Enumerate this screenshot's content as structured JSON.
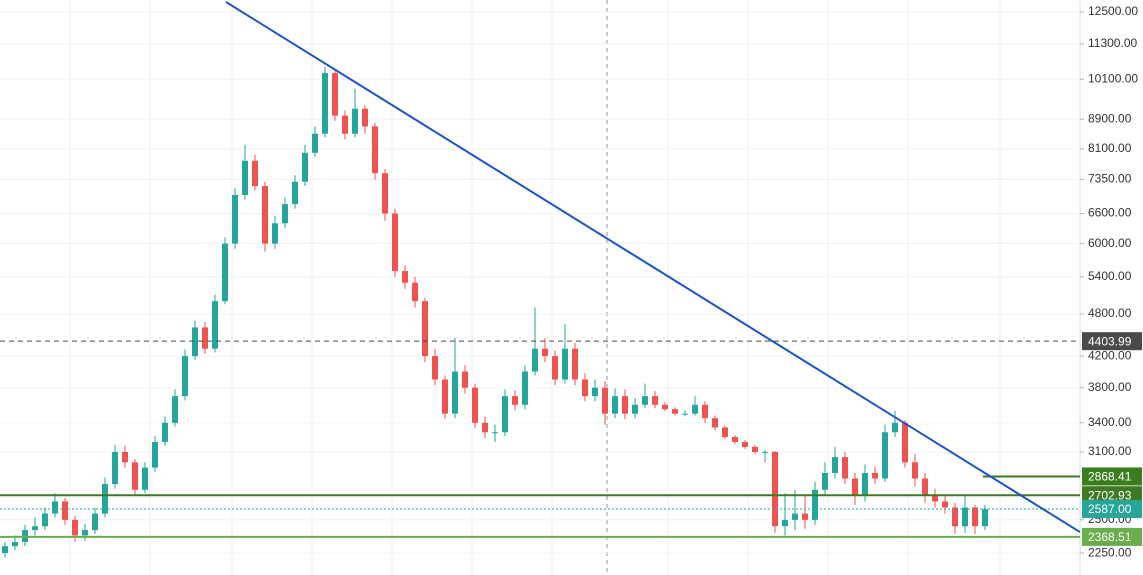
{
  "chart_data": {
    "type": "candlestick",
    "log_scale": true,
    "grid": true,
    "up_color": "#26a69a",
    "down_color": "#ef5350",
    "ylim": [
      2099,
      12985
    ],
    "yticks": [
      {
        "value": 2250,
        "label": "2250.00"
      },
      {
        "value": 2500,
        "label": "2500.00"
      },
      {
        "value": 3100,
        "label": "3100.00"
      },
      {
        "value": 3400,
        "label": "3400.00"
      },
      {
        "value": 3800,
        "label": "3800.00"
      },
      {
        "value": 4200,
        "label": "4200.00"
      },
      {
        "value": 4800,
        "label": "4800.00"
      },
      {
        "value": 5400,
        "label": "5400.00"
      },
      {
        "value": 6000,
        "label": "6000.00"
      },
      {
        "value": 6600,
        "label": "6600.00"
      },
      {
        "value": 7350,
        "label": "7350.00"
      },
      {
        "value": 8100,
        "label": "8100.00"
      },
      {
        "value": 8900,
        "label": "8900.00"
      },
      {
        "value": 10100,
        "label": "10100.00"
      },
      {
        "value": 11300,
        "label": "11300.00"
      },
      {
        "value": 12500,
        "label": "12500.00"
      }
    ],
    "open": [
      2250,
      2300,
      2330,
      2420,
      2450,
      2550,
      2650,
      2500,
      2380,
      2420,
      2550,
      2800,
      3100,
      3000,
      2750,
      2950,
      3200,
      3400,
      3700,
      4200,
      4600,
      4300,
      5000,
      6000,
      7000,
      7800,
      7200,
      6000,
      6400,
      6800,
      7300,
      8000,
      8500,
      10300,
      9000,
      8500,
      9200,
      8700,
      7500,
      6600,
      5500,
      5300,
      5000,
      4200,
      3900,
      3500,
      4000,
      3800,
      3400,
      3300,
      3300,
      3700,
      3600,
      4000,
      4300,
      4200,
      3900,
      4300,
      3900,
      3700,
      3800,
      3500,
      3700,
      3500,
      3600,
      3700,
      3600,
      3550,
      3500,
      3500,
      3600,
      3450,
      3350,
      3250,
      3200,
      3150,
      3100,
      3100,
      2450,
      2500,
      2550,
      2500,
      2750,
      2900,
      3050,
      2850,
      2700,
      2900,
      2850,
      3300,
      3400,
      3000,
      2850,
      2700,
      2650,
      2600,
      2450,
      2600,
      2450
    ],
    "high": [
      2330,
      2380,
      2460,
      2520,
      2600,
      2720,
      2680,
      2530,
      2470,
      2600,
      2860,
      3170,
      3160,
      3030,
      3000,
      3260,
      3470,
      3780,
      4290,
      4700,
      4680,
      5100,
      6120,
      7150,
      8200,
      7950,
      7300,
      6550,
      6950,
      7450,
      8200,
      8700,
      10500,
      10400,
      9150,
      9800,
      9300,
      8800,
      7600,
      6700,
      5600,
      5400,
      5050,
      4300,
      3950,
      4450,
      4080,
      3850,
      3470,
      3380,
      3780,
      3770,
      4080,
      4900,
      4450,
      4280,
      4650,
      4380,
      3980,
      3900,
      3880,
      3790,
      3780,
      3680,
      3850,
      3760,
      3630,
      3570,
      3540,
      3700,
      3640,
      3480,
      3370,
      3270,
      3220,
      3170,
      3120,
      3110,
      2720,
      2750,
      2700,
      2820,
      3000,
      3150,
      3100,
      2900,
      2980,
      2960,
      3380,
      3530,
      3430,
      3080,
      2900,
      2760,
      2700,
      2640,
      2700,
      2620,
      2620
    ],
    "low": [
      2220,
      2270,
      2300,
      2380,
      2420,
      2520,
      2460,
      2330,
      2340,
      2390,
      2520,
      2760,
      2950,
      2700,
      2720,
      2910,
      3160,
      3360,
      3650,
      4150,
      4230,
      4250,
      4950,
      5900,
      6900,
      7100,
      5850,
      5900,
      6300,
      6700,
      7200,
      7900,
      8400,
      8850,
      8350,
      8400,
      8500,
      7350,
      6450,
      5400,
      5200,
      4900,
      4120,
      3830,
      3440,
      3450,
      3730,
      3340,
      3240,
      3200,
      3260,
      3540,
      3550,
      3950,
      4120,
      3830,
      3850,
      3830,
      3640,
      3640,
      3380,
      3450,
      3440,
      3450,
      3560,
      3560,
      3530,
      3480,
      3470,
      3480,
      3400,
      3320,
      3230,
      3180,
      3130,
      3080,
      3000,
      2400,
      2380,
      2420,
      2430,
      2460,
      2700,
      2850,
      2800,
      2620,
      2650,
      2800,
      2820,
      3250,
      2950,
      2780,
      2640,
      2600,
      2550,
      2390,
      2400,
      2390,
      2420
    ],
    "close": [
      2300,
      2330,
      2420,
      2450,
      2550,
      2650,
      2500,
      2380,
      2420,
      2550,
      2800,
      3100,
      3000,
      2750,
      2950,
      3200,
      3400,
      3700,
      4200,
      4600,
      4300,
      5000,
      6000,
      7000,
      7800,
      7200,
      6000,
      6400,
      6800,
      7300,
      8000,
      8500,
      10300,
      9000,
      8500,
      9200,
      8700,
      7500,
      6600,
      5500,
      5300,
      5000,
      4200,
      3900,
      3500,
      4000,
      3800,
      3400,
      3300,
      3300,
      3700,
      3600,
      4000,
      4300,
      4200,
      3900,
      4300,
      3900,
      3700,
      3800,
      3500,
      3700,
      3500,
      3600,
      3700,
      3600,
      3550,
      3500,
      3500,
      3600,
      3450,
      3350,
      3250,
      3200,
      3150,
      3100,
      3100,
      2450,
      2500,
      2550,
      2500,
      2750,
      2900,
      3050,
      2850,
      2700,
      2900,
      2850,
      3300,
      3400,
      3000,
      2850,
      2700,
      2650,
      2600,
      2450,
      2600,
      2450,
      2587
    ],
    "trend_line": {
      "color": "#1e53c8",
      "values": [
        12903,
        2405
      ]
    },
    "levels": [
      {
        "value": 4403.99,
        "color": "#4a4a4a",
        "style": "dashed",
        "full": true
      },
      {
        "value": 2868.41,
        "color": "#3b7d1e",
        "style": "solid",
        "full": false
      },
      {
        "value": 2702.93,
        "color": "#3f7a22",
        "style": "solid",
        "full": true
      },
      {
        "value": 2587,
        "label": "2587.00",
        "color": "#26a69a",
        "style": "dotted",
        "full": true
      },
      {
        "value": 2368.51,
        "color": "#6aad4c",
        "style": "solid",
        "full": true
      }
    ]
  }
}
